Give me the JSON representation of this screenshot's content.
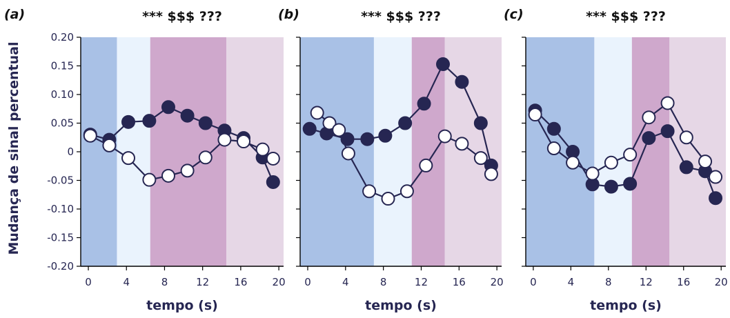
{
  "chart_data": [
    {
      "type": "line",
      "panel_label": "(a)",
      "title": "*** $$$ ???",
      "xlabel": "tempo (s)",
      "ylabel": "Mudança de sinal percentual",
      "xlim": [
        -0.8,
        20.5
      ],
      "ylim": [
        -0.2,
        0.2
      ],
      "xticks": [
        0,
        4,
        8,
        12,
        16,
        20
      ],
      "yticks": [
        0.2,
        0.15,
        0.1,
        0.05,
        0,
        -0.05,
        -0.1,
        -0.15,
        -0.2
      ],
      "ytick_labels": [
        "0.20",
        "0.15",
        "0.10",
        "0.05",
        "0",
        "-0.05",
        "-0.10",
        "-0.15",
        "-0.20"
      ],
      "bands": [
        {
          "from": -0.8,
          "to": 3.0,
          "color": "#a9c1e6"
        },
        {
          "from": 3.0,
          "to": 6.5,
          "color": "#eaf3fd"
        },
        {
          "from": 6.5,
          "to": 14.5,
          "color": "#cfa8cc"
        },
        {
          "from": 14.5,
          "to": 20.5,
          "color": "#e6d7e6"
        }
      ],
      "series": [
        {
          "style": "filled",
          "x": [
            0.2,
            2.2,
            4.2,
            6.4,
            8.4,
            10.4,
            12.3,
            14.3,
            16.3,
            18.3,
            19.4
          ],
          "y": [
            0.03,
            0.021,
            0.052,
            0.054,
            0.078,
            0.063,
            0.05,
            0.037,
            0.024,
            -0.01,
            -0.053
          ]
        },
        {
          "style": "open",
          "x": [
            0.2,
            2.2,
            4.2,
            6.4,
            8.4,
            10.4,
            12.3,
            14.3,
            16.3,
            18.3,
            19.4
          ],
          "y": [
            0.028,
            0.011,
            -0.011,
            -0.049,
            -0.042,
            -0.033,
            -0.01,
            0.021,
            0.018,
            0.004,
            -0.012
          ]
        }
      ]
    },
    {
      "type": "line",
      "panel_label": "(b)",
      "title": "*** $$$ ???",
      "xlabel": "tempo (s)",
      "xlim": [
        -0.8,
        20.5
      ],
      "ylim": [
        -0.2,
        0.2
      ],
      "xticks": [
        0,
        4,
        8,
        12,
        16,
        20
      ],
      "bands": [
        {
          "from": -0.8,
          "to": 7.0,
          "color": "#a9c1e6"
        },
        {
          "from": 7.0,
          "to": 11.0,
          "color": "#eaf3fd"
        },
        {
          "from": 11.0,
          "to": 14.5,
          "color": "#cfa8cc"
        },
        {
          "from": 14.5,
          "to": 20.5,
          "color": "#e6d7e6"
        }
      ],
      "series": [
        {
          "style": "filled",
          "x": [
            0.2,
            2.0,
            4.2,
            6.3,
            8.2,
            10.3,
            12.3,
            14.3,
            16.3,
            18.3,
            19.4
          ],
          "y": [
            0.04,
            0.032,
            0.022,
            0.022,
            0.028,
            0.05,
            0.084,
            0.153,
            0.122,
            0.05,
            -0.024
          ]
        },
        {
          "style": "open",
          "x": [
            1.0,
            2.3,
            3.3,
            4.3,
            6.5,
            8.5,
            10.5,
            12.5,
            14.5,
            16.3,
            18.3,
            19.4
          ],
          "y": [
            0.068,
            0.05,
            0.038,
            -0.003,
            -0.069,
            -0.082,
            -0.069,
            -0.024,
            0.027,
            0.014,
            -0.011,
            -0.039
          ]
        }
      ]
    },
    {
      "type": "line",
      "panel_label": "(c)",
      "title": "*** $$$ ???",
      "xlabel": "tempo (s)",
      "xlim": [
        -0.8,
        20.5
      ],
      "ylim": [
        -0.2,
        0.2
      ],
      "xticks": [
        0,
        4,
        8,
        12,
        16,
        20
      ],
      "bands": [
        {
          "from": -0.8,
          "to": 6.5,
          "color": "#a9c1e6"
        },
        {
          "from": 6.5,
          "to": 10.5,
          "color": "#eaf3fd"
        },
        {
          "from": 10.5,
          "to": 14.5,
          "color": "#cfa8cc"
        },
        {
          "from": 14.5,
          "to": 20.5,
          "color": "#e6d7e6"
        }
      ],
      "series": [
        {
          "style": "filled",
          "x": [
            0.2,
            2.2,
            4.2,
            6.3,
            8.3,
            10.3,
            12.3,
            14.3,
            16.3,
            18.3,
            19.4
          ],
          "y": [
            0.072,
            0.04,
            0.0,
            -0.057,
            -0.061,
            -0.056,
            0.024,
            0.036,
            -0.027,
            -0.034,
            -0.081
          ]
        },
        {
          "style": "open",
          "x": [
            0.2,
            2.2,
            4.2,
            6.3,
            8.3,
            10.3,
            12.3,
            14.3,
            16.3,
            18.3,
            19.4
          ],
          "y": [
            0.065,
            0.006,
            -0.019,
            -0.038,
            -0.019,
            -0.005,
            0.06,
            0.085,
            0.025,
            -0.017,
            -0.044
          ]
        }
      ]
    }
  ]
}
